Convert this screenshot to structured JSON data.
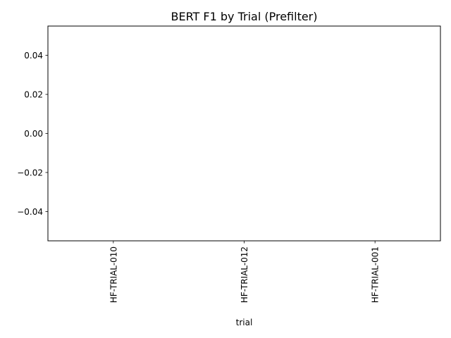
{
  "chart_data": {
    "type": "bar",
    "title": "BERT F1 by Trial (Prefilter)",
    "xlabel": "trial",
    "ylabel": "",
    "categories": [
      "HF-TRIAL-010",
      "HF-TRIAL-012",
      "HF-TRIAL-001"
    ],
    "values": [
      0,
      0,
      0
    ],
    "ylim": [
      -0.055,
      0.055
    ],
    "yticks": [
      -0.04,
      -0.02,
      0.0,
      0.02,
      0.04
    ],
    "ytick_labels": [
      "−0.04",
      "−0.02",
      "0.00",
      "0.02",
      "0.04"
    ],
    "grid": false,
    "legend": "none",
    "bar_color": "#1f77b4"
  }
}
